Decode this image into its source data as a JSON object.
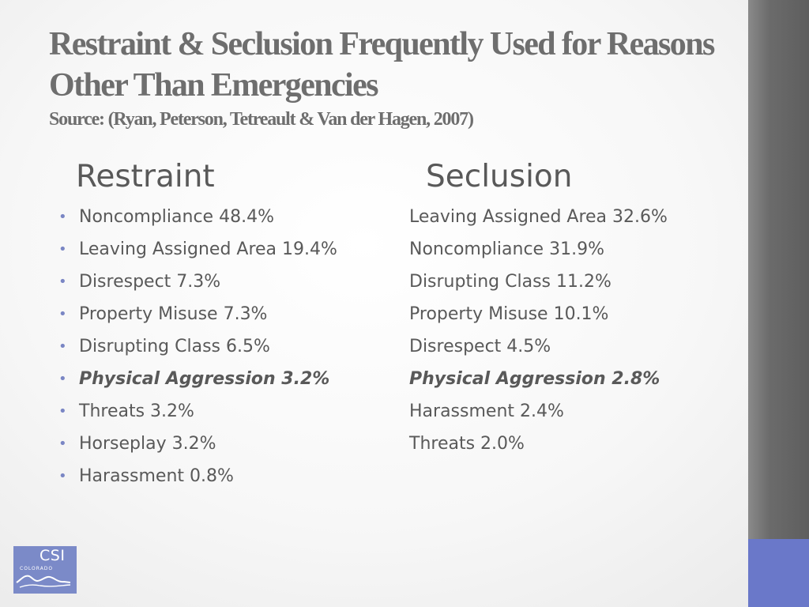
{
  "title": "Restraint & Seclusion Frequently Used for Reasons Other Than Emergencies",
  "subtitle": "Source: (Ryan, Peterson, Tetreault & Van der Hagen, 2007)",
  "restraint": {
    "heading": "Restraint",
    "items": [
      {
        "text": "Noncompliance 48.4%"
      },
      {
        "text": "Leaving Assigned Area 19.4%"
      },
      {
        "text": "Disrespect 7.3%"
      },
      {
        "text": "Property Misuse 7.3%"
      },
      {
        "text": "Disrupting Class 6.5%"
      },
      {
        "text": "Physical Aggression 3.2%"
      },
      {
        "text": "Threats 3.2%"
      },
      {
        "text": "Horseplay 3.2%"
      },
      {
        "text": "Harassment 0.8%"
      }
    ]
  },
  "seclusion": {
    "heading": "Seclusion",
    "items": [
      {
        "text": "Leaving Assigned Area 32.6%"
      },
      {
        "text": "Noncompliance 31.9%"
      },
      {
        "text": "Disrupting Class 11.2%"
      },
      {
        "text": "Property Misuse 10.1%"
      },
      {
        "text": "Disrespect 4.5%"
      },
      {
        "text": "Physical Aggression 2.8%"
      },
      {
        "text": "Harassment 2.4%"
      },
      {
        "text": "Threats 2.0%"
      }
    ]
  },
  "logo": {
    "main": "CSI",
    "sub": "COLORADO"
  },
  "colors": {
    "bullet": "#7a86c4",
    "side_bar": "#6b6b6b",
    "accent": "#6a78c9",
    "text": "#595959"
  }
}
